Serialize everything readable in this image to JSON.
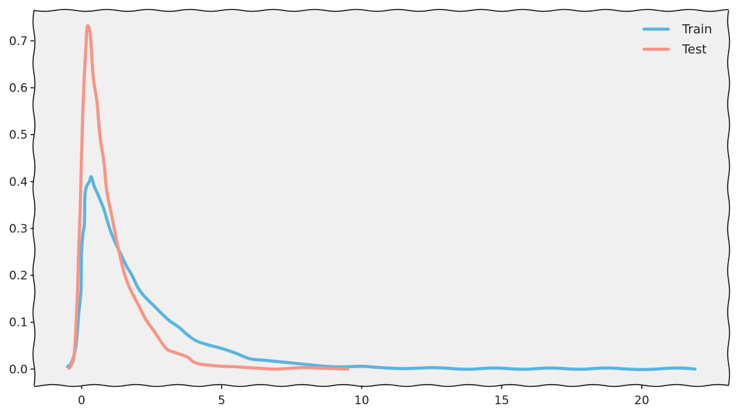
{
  "chart_data": {
    "type": "line",
    "title": "",
    "xlabel": "",
    "ylabel": "",
    "xlim": [
      -1.7,
      23.1
    ],
    "ylim": [
      -0.035,
      0.765
    ],
    "grid": false,
    "legend_position": "top-right",
    "background": "#f0f0f0",
    "xticks": [
      0,
      5,
      10,
      15,
      20
    ],
    "yticks": [
      0.0,
      0.1,
      0.2,
      0.3,
      0.4,
      0.5,
      0.6,
      0.7
    ],
    "xtick_labels": [
      "0",
      "5",
      "10",
      "15",
      "20"
    ],
    "ytick_labels": [
      "0.0",
      "0.1",
      "0.2",
      "0.3",
      "0.4",
      "0.5",
      "0.6",
      "0.7"
    ],
    "series": [
      {
        "name": "Train",
        "color": "#5ab4e0",
        "points": [
          [
            -0.5,
            0.005
          ],
          [
            -0.35,
            0.015
          ],
          [
            -0.2,
            0.05
          ],
          [
            -0.1,
            0.12
          ],
          [
            -0.02,
            0.17
          ],
          [
            0.0,
            0.25
          ],
          [
            0.05,
            0.29
          ],
          [
            0.1,
            0.31
          ],
          [
            0.12,
            0.37
          ],
          [
            0.18,
            0.39
          ],
          [
            0.28,
            0.4
          ],
          [
            0.35,
            0.41
          ],
          [
            0.45,
            0.39
          ],
          [
            0.6,
            0.37
          ],
          [
            0.8,
            0.34
          ],
          [
            1.0,
            0.3
          ],
          [
            1.2,
            0.27
          ],
          [
            1.4,
            0.245
          ],
          [
            1.6,
            0.22
          ],
          [
            1.8,
            0.2
          ],
          [
            2.0,
            0.175
          ],
          [
            2.2,
            0.158
          ],
          [
            2.5,
            0.14
          ],
          [
            2.8,
            0.122
          ],
          [
            3.1,
            0.105
          ],
          [
            3.5,
            0.088
          ],
          [
            3.8,
            0.072
          ],
          [
            4.1,
            0.06
          ],
          [
            4.5,
            0.052
          ],
          [
            5.0,
            0.044
          ],
          [
            5.5,
            0.034
          ],
          [
            6.0,
            0.022
          ],
          [
            6.5,
            0.019
          ],
          [
            7.0,
            0.016
          ],
          [
            7.5,
            0.013
          ],
          [
            8.0,
            0.01
          ],
          [
            8.5,
            0.007
          ],
          [
            9.0,
            0.005
          ],
          [
            9.5,
            0.005
          ],
          [
            10.0,
            0.006
          ],
          [
            10.5,
            0.004
          ],
          [
            11.0,
            0.002
          ],
          [
            11.5,
            0.001
          ],
          [
            12.0,
            0.002
          ],
          [
            12.5,
            0.003
          ],
          [
            13.0,
            0.002
          ],
          [
            13.5,
            0.0
          ],
          [
            14.0,
            0.0
          ],
          [
            14.5,
            0.002
          ],
          [
            15.0,
            0.002
          ],
          [
            15.5,
            0.0
          ],
          [
            16.0,
            0.0
          ],
          [
            16.5,
            0.002
          ],
          [
            17.0,
            0.002
          ],
          [
            17.5,
            0.0
          ],
          [
            18.0,
            0.0
          ],
          [
            18.5,
            0.002
          ],
          [
            19.0,
            0.002
          ],
          [
            19.5,
            0.0
          ],
          [
            20.0,
            -0.001
          ],
          [
            20.5,
            0.0
          ],
          [
            21.0,
            0.002
          ],
          [
            21.5,
            0.002
          ],
          [
            21.9,
            0.0
          ]
        ]
      },
      {
        "name": "Test",
        "color": "#f99485",
        "points": [
          [
            -0.45,
            0.002
          ],
          [
            -0.35,
            0.01
          ],
          [
            -0.25,
            0.04
          ],
          [
            -0.15,
            0.16
          ],
          [
            -0.1,
            0.26
          ],
          [
            -0.05,
            0.34
          ],
          [
            0.0,
            0.46
          ],
          [
            0.05,
            0.56
          ],
          [
            0.1,
            0.63
          ],
          [
            0.15,
            0.68
          ],
          [
            0.2,
            0.73
          ],
          [
            0.3,
            0.72
          ],
          [
            0.35,
            0.68
          ],
          [
            0.42,
            0.62
          ],
          [
            0.55,
            0.57
          ],
          [
            0.65,
            0.5
          ],
          [
            0.8,
            0.44
          ],
          [
            0.9,
            0.38
          ],
          [
            1.1,
            0.32
          ],
          [
            1.3,
            0.26
          ],
          [
            1.5,
            0.21
          ],
          [
            1.7,
            0.175
          ],
          [
            2.0,
            0.14
          ],
          [
            2.3,
            0.105
          ],
          [
            2.6,
            0.08
          ],
          [
            3.0,
            0.045
          ],
          [
            3.3,
            0.036
          ],
          [
            3.6,
            0.03
          ],
          [
            3.8,
            0.025
          ],
          [
            4.0,
            0.015
          ],
          [
            4.3,
            0.01
          ],
          [
            4.6,
            0.008
          ],
          [
            5.0,
            0.006
          ],
          [
            5.5,
            0.005
          ],
          [
            6.0,
            0.003
          ],
          [
            6.5,
            0.001
          ],
          [
            7.0,
            0.0
          ],
          [
            7.5,
            0.002
          ],
          [
            8.0,
            0.003
          ],
          [
            8.5,
            0.002
          ],
          [
            9.0,
            0.001
          ],
          [
            9.5,
            0.0
          ]
        ]
      }
    ]
  }
}
